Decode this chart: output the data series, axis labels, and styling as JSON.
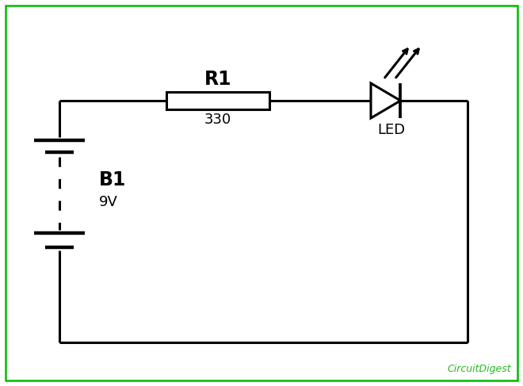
{
  "bg_color": "#ffffff",
  "border_color": "#00bb00",
  "line_color": "#000000",
  "line_width": 2.2,
  "circuit_label": "CircuitDigest",
  "resistor_label": "R1",
  "resistor_value": "330",
  "battery_label": "B1",
  "battery_value": "9V",
  "led_label": "LED",
  "fig_width": 6.6,
  "fig_height": 4.87,
  "dpi": 100
}
